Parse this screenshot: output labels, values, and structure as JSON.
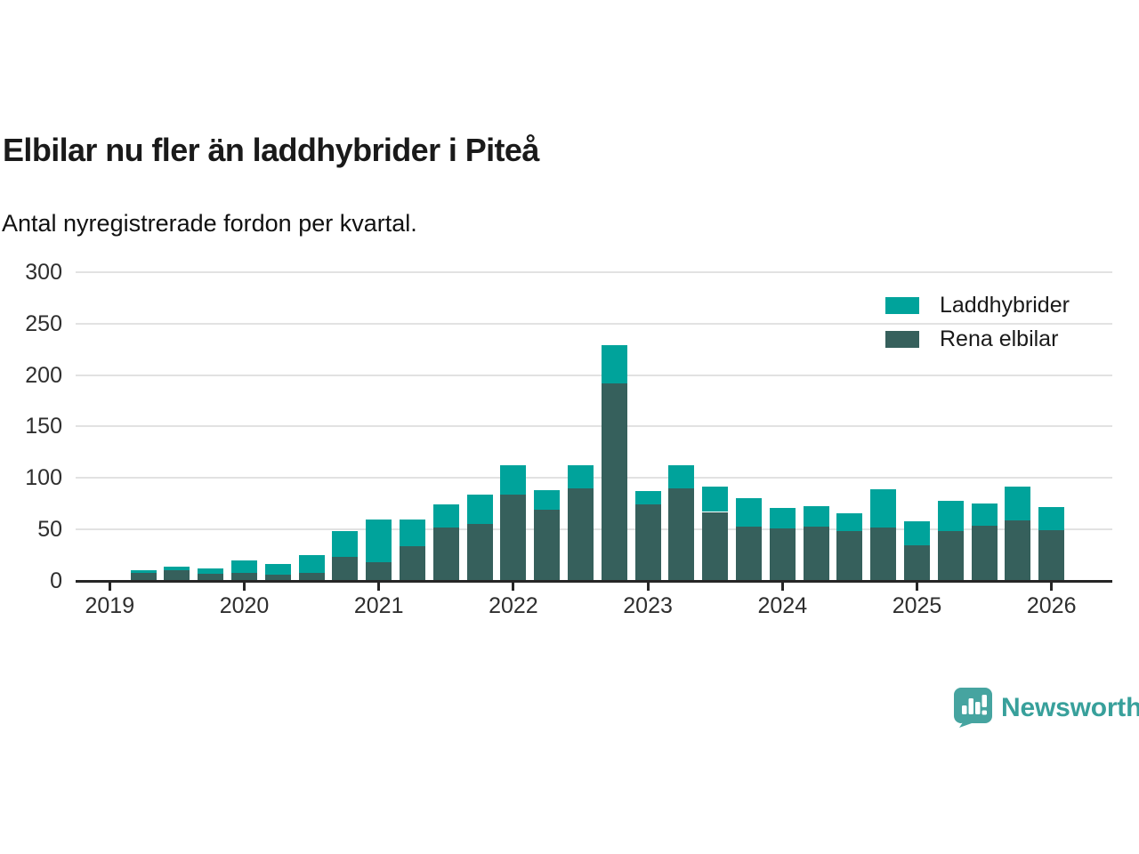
{
  "header": {
    "title": "Elbilar nu fler än laddhybrider i Piteå",
    "subtitle": "Antal nyregistrerade fordon per kvartal."
  },
  "chart_data": {
    "type": "bar",
    "stacked": true,
    "title": "Elbilar nu fler än laddhybrider i Piteå",
    "subtitle": "Antal nyregistrerade fordon per kvartal.",
    "xlabel": "",
    "ylabel": "",
    "ylim": [
      0,
      300
    ],
    "y_ticks": [
      0,
      50,
      100,
      150,
      200,
      250,
      300
    ],
    "grid": "horizontal",
    "legend_position": "top-right",
    "x_year_labels": [
      "2019",
      "2020",
      "2021",
      "2022",
      "2023",
      "2024",
      "2025",
      "2026"
    ],
    "quarters": [
      "2019 Q2",
      "2019 Q3",
      "2019 Q4",
      "2020 Q1",
      "2020 Q2",
      "2020 Q3",
      "2020 Q4",
      "2021 Q1",
      "2021 Q2",
      "2021 Q3",
      "2021 Q4",
      "2022 Q1",
      "2022 Q2",
      "2022 Q3",
      "2022 Q4",
      "2023 Q1",
      "2023 Q2",
      "2023 Q3",
      "2023 Q4",
      "2024 Q1",
      "2024 Q2",
      "2024 Q3",
      "2024 Q4",
      "2025 Q1",
      "2025 Q2",
      "2025 Q3",
      "2025 Q4",
      "2026 Q1"
    ],
    "series": [
      {
        "name": "Laddhybrider",
        "color": "#00a39b",
        "stack_position": "top",
        "values": [
          2,
          4,
          5,
          12,
          10,
          17,
          25,
          42,
          26,
          22,
          29,
          28,
          19,
          22,
          37,
          13,
          22,
          25,
          27,
          20,
          20,
          18,
          37,
          23,
          30,
          21,
          33,
          23
        ]
      },
      {
        "name": "Rena elbilar",
        "color": "#36605c",
        "stack_position": "bottom",
        "values": [
          8,
          10,
          7,
          8,
          6,
          8,
          23,
          18,
          34,
          52,
          55,
          84,
          69,
          90,
          192,
          74,
          90,
          67,
          53,
          51,
          53,
          48,
          52,
          35,
          48,
          54,
          59,
          49
        ]
      }
    ]
  },
  "legend": {
    "items": [
      {
        "label": "Laddhybrider",
        "color": "#00a39b"
      },
      {
        "label": "Rena elbilar",
        "color": "#36605c"
      }
    ]
  },
  "branding": {
    "name": "Newsworthy",
    "text_color": "#38a09b",
    "icon_color": "#46a4a0",
    "icon": "newsworthy-chart-bubble-icon"
  },
  "colors": {
    "background": "#ffffff",
    "gridline": "#e2e2e2",
    "axis": "#262626",
    "text": "#2e2e2e"
  }
}
